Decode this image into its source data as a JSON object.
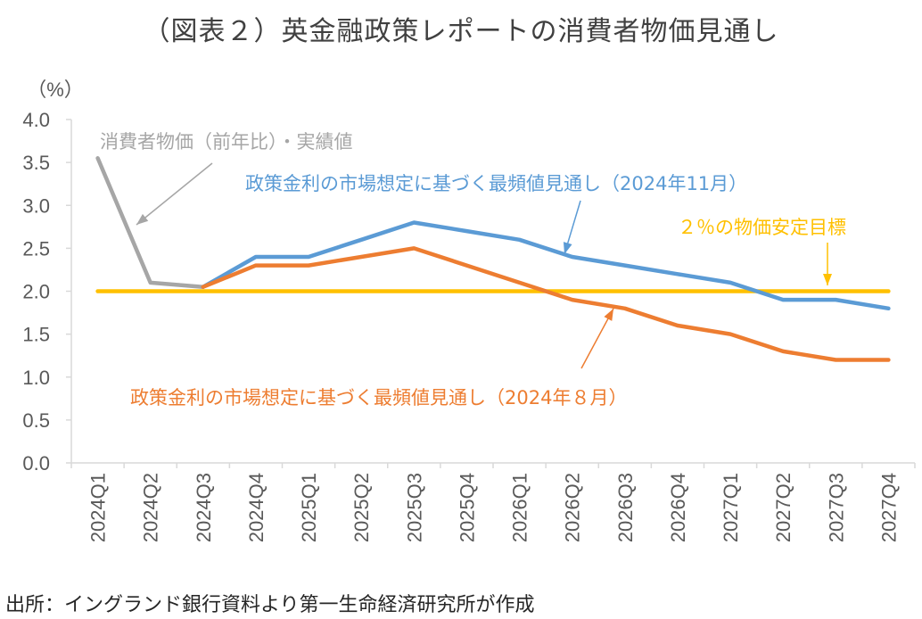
{
  "title": "（図表２）英金融政策レポートの消費者物価見通し",
  "source": "出所：イングランド銀行資料より第一生命経済研究所が作成",
  "chart_data": {
    "type": "line",
    "unit_label": "（%）",
    "categories": [
      "2024Q1",
      "2024Q2",
      "2024Q3",
      "2024Q4",
      "2025Q1",
      "2025Q2",
      "2025Q3",
      "2025Q4",
      "2026Q1",
      "2026Q2",
      "2026Q3",
      "2026Q4",
      "2027Q1",
      "2027Q2",
      "2027Q3",
      "2027Q4"
    ],
    "ylim": [
      0,
      4
    ],
    "yticks": [
      "0.0",
      "0.5",
      "1.0",
      "1.5",
      "2.0",
      "2.5",
      "3.0",
      "3.5",
      "4.0"
    ],
    "grid": false,
    "series": [
      {
        "name": "消費者物価（前年比）・実績値",
        "color": "#a6a6a6",
        "values": [
          3.55,
          2.1,
          2.05,
          null,
          null,
          null,
          null,
          null,
          null,
          null,
          null,
          null,
          null,
          null,
          null,
          null
        ]
      },
      {
        "name": "政策金利の市場想定に基づく最頻値見通し（2024年11月）",
        "color": "#5b9bd5",
        "values": [
          null,
          null,
          2.05,
          2.4,
          2.4,
          2.6,
          2.8,
          2.7,
          2.6,
          2.4,
          2.3,
          2.2,
          2.1,
          1.9,
          1.9,
          1.8
        ]
      },
      {
        "name": "政策金利の市場想定に基づく最頻値見通し（2024年８月）",
        "color": "#ed7d31",
        "values": [
          null,
          null,
          2.05,
          2.3,
          2.3,
          2.4,
          2.5,
          2.3,
          2.1,
          1.9,
          1.8,
          1.6,
          1.5,
          1.3,
          1.2,
          1.2
        ]
      },
      {
        "name": "２％の物価安定目標",
        "color": "#ffc000",
        "values": [
          2.0,
          2.0,
          2.0,
          2.0,
          2.0,
          2.0,
          2.0,
          2.0,
          2.0,
          2.0,
          2.0,
          2.0,
          2.0,
          2.0,
          2.0,
          2.0
        ]
      }
    ]
  }
}
